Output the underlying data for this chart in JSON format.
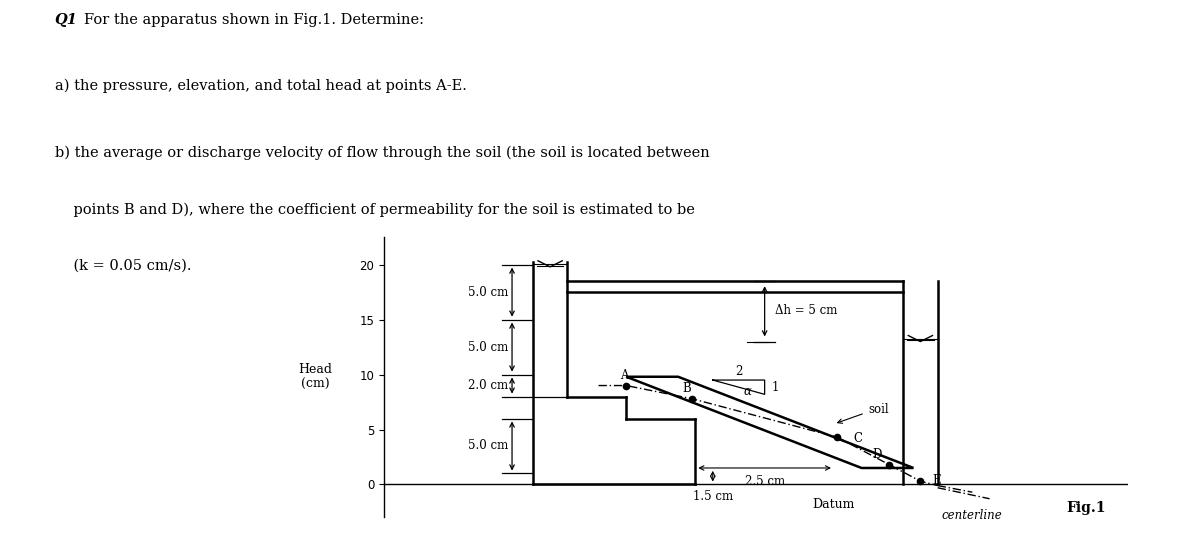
{
  "title_q": "Q1",
  "title_colon": ":",
  "title_rest": "For the apparatus shown in Fig.1. Determine:",
  "line_a": "a) the pressure, elevation, and total head at points A-E.",
  "line_b1": "b) the average or discharge velocity of flow through the soil (the soil is located between",
  "line_b2": "    points B and D), where the coefficient of permeability for the soil is estimated to be",
  "line_b3": "    (k = 0.05 cm/s).",
  "ylabel": "Head\n(cm)",
  "yticks": [
    0,
    5,
    10,
    15,
    20
  ],
  "fig_label": "Fig.1",
  "datum_label": "Datum",
  "centerline_label": "centerline",
  "label_5cm_top": "5.0 cm",
  "label_5cm_mid": "5.0 cm",
  "label_2cm": "2.0 cm",
  "label_5cm_bot": "5.0 cm",
  "label_25cm": "2.5 cm",
  "label_15cm": "1.5 cm",
  "label_dh": "Δh = 5 cm",
  "label_soil": "soil",
  "label_alpha": "α",
  "label_2": "2",
  "label_1": "1",
  "bg_color": "#ffffff",
  "lc": "#000000"
}
